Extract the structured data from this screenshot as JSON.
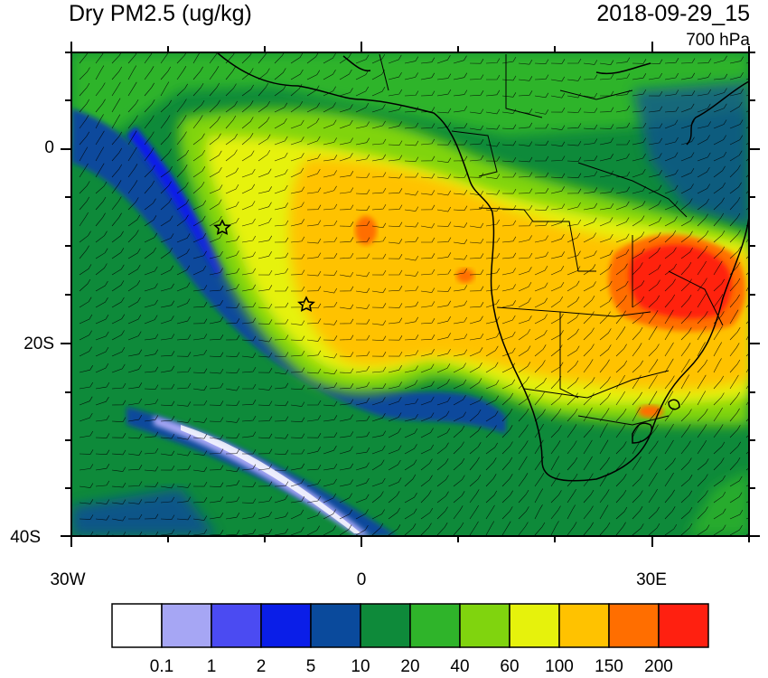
{
  "title": "Dry PM2.5 (ug/kg)",
  "datetime": "2018-09-29_15",
  "level": "700 hPa",
  "lat_labels": [
    "0",
    "20S",
    "40S"
  ],
  "lon_labels": [
    "30W",
    "0",
    "30E"
  ],
  "colorbar": {
    "colors": [
      "#ffffff",
      "#a6a6f4",
      "#4b4bf2",
      "#0a1ee8",
      "#0a4a9c",
      "#0e8a3a",
      "#2fb42a",
      "#80d40e",
      "#e6f20c",
      "#ffc200",
      "#ff6e00",
      "#ff2010"
    ],
    "labels": [
      "0.1",
      "1",
      "2",
      "5",
      "10",
      "20",
      "40",
      "60",
      "100",
      "150",
      "200"
    ]
  },
  "markers": [
    "star",
    "star"
  ]
}
